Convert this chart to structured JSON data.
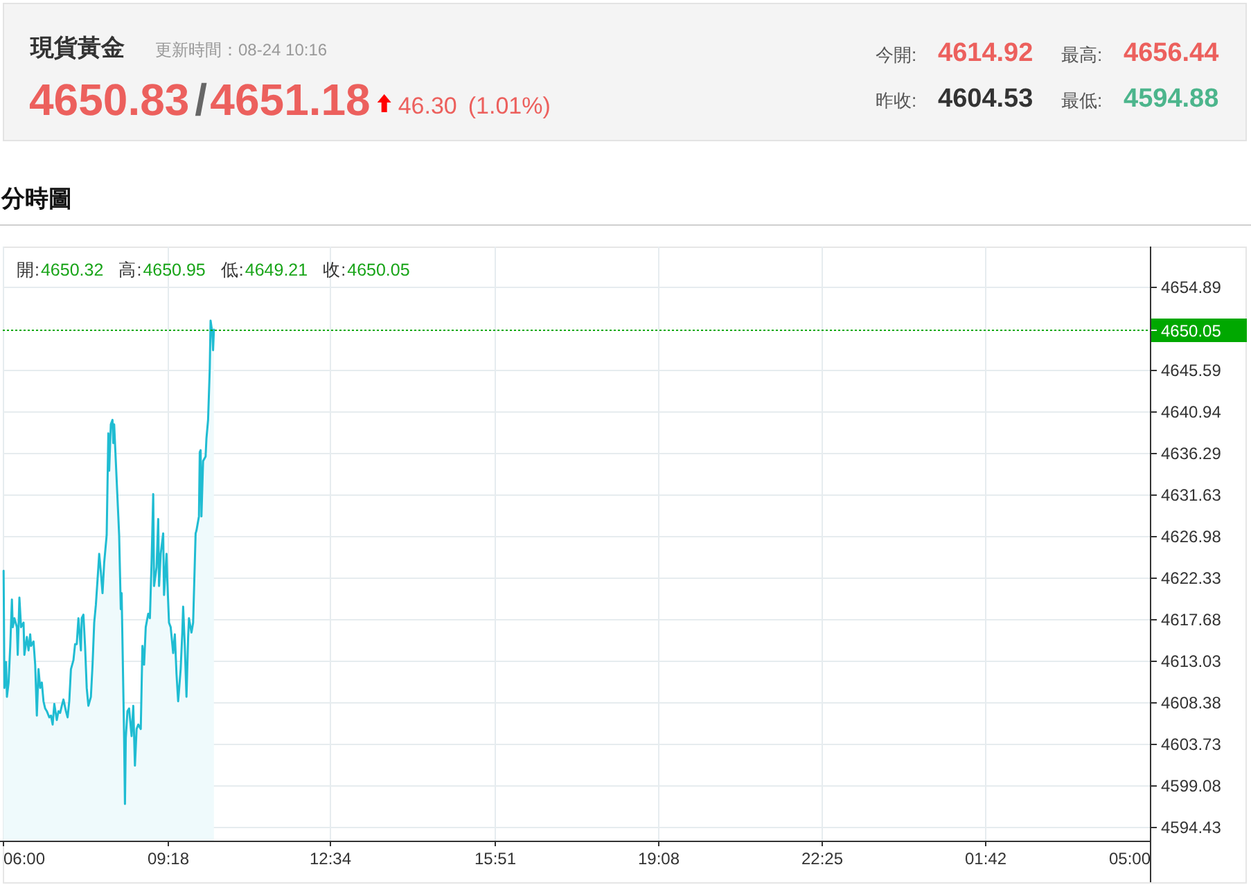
{
  "chart_data": {
    "type": "area",
    "title": "現貨黃金",
    "subtitle": "更新時間：08-24 10:16",
    "x": [
      "--08-24T06:01",
      "--08-24T06:02",
      "--08-24T06:04",
      "--08-24T06:05",
      "--08-24T06:07",
      "--08-24T06:09",
      "--08-24T06:11",
      "--08-24T06:12",
      "--08-24T06:14",
      "--08-24T06:17",
      "--08-24T06:18",
      "--08-24T06:20",
      "--08-24T06:22",
      "--08-24T06:25",
      "--08-24T06:26",
      "--08-24T06:29",
      "--08-24T06:31",
      "--08-24T06:33",
      "--08-24T06:34",
      "--08-24T06:37",
      "--08-24T06:39",
      "--08-24T06:41",
      "--08-24T06:43",
      "--08-24T06:45",
      "--08-24T06:47",
      "--08-24T06:49",
      "--08-24T06:51",
      "--08-24T06:53",
      "--08-24T06:56",
      "--08-24T06:58",
      "--08-24T07:00",
      "--08-24T07:02",
      "--08-24T07:05",
      "--08-24T07:07",
      "--08-24T07:09",
      "--08-24T07:11",
      "--08-24T07:13",
      "--08-24T07:16",
      "--08-24T07:18",
      "--08-24T07:20",
      "--08-24T07:22",
      "--08-24T07:25",
      "--08-24T07:27",
      "--08-24T07:29",
      "--08-24T07:31",
      "--08-24T07:34",
      "--08-24T07:35",
      "--08-24T07:37",
      "--08-24T07:39",
      "--08-24T07:41",
      "--08-24T07:43",
      "--08-24T07:46",
      "--08-24T07:48",
      "--08-24T07:50",
      "--08-24T07:52",
      "--08-24T07:55",
      "--08-24T07:56",
      "--08-24T07:58",
      "--08-24T08:00",
      "--08-24T08:02",
      "--08-24T08:05",
      "--08-24T08:07",
      "--08-24T08:08",
      "--08-24T08:10",
      "--08-24T08:12",
      "--08-24T08:13",
      "--08-24T08:14",
      "--08-24T08:17",
      "--08-24T08:19",
      "--08-24T08:20",
      "--08-24T08:22",
      "--08-24T08:23",
      "--08-24T08:26",
      "--08-24T08:27",
      "--08-24T08:28",
      "--08-24T08:30",
      "--08-24T08:32",
      "--08-24T08:35",
      "--08-24T08:37",
      "--08-24T08:39",
      "--08-24T08:41",
      "--08-24T08:43",
      "--08-24T08:46",
      "--08-24T08:48",
      "--08-24T08:50",
      "--08-24T08:52",
      "--08-24T08:55",
      "--08-24T08:57",
      "--08-24T08:59",
      "--08-24T09:01",
      "--08-24T09:02",
      "--08-24T09:05",
      "--08-24T09:07",
      "--08-24T09:08",
      "--08-24T09:10",
      "--08-24T09:13",
      "--08-24T09:14",
      "--08-24T09:17",
      "--08-24T09:18",
      "--08-24T09:20",
      "--08-24T09:22",
      "--08-24T09:25",
      "--08-24T09:27",
      "--08-24T09:29",
      "--08-24T09:31",
      "--08-24T09:34",
      "--08-24T09:36",
      "--08-24T09:37",
      "--08-24T09:39",
      "--08-24T09:41",
      "--08-24T09:43",
      "--08-24T09:44",
      "--08-24T09:47",
      "--08-24T09:49",
      "--08-24T09:52",
      "--08-24T09:53",
      "--08-24T09:56",
      "--08-24T09:57",
      "--08-24T09:58",
      "--08-24T09:59",
      "--08-24T10:01",
      "--08-24T10:04",
      "--08-24T10:05",
      "--08-24T10:07",
      "--08-24T10:09",
      "--08-24T10:10",
      "--08-24T10:12",
      "--08-24T10:13",
      "--08-24T10:14"
    ],
    "values": [
      4623.1,
      4610.0,
      4612.9,
      4609.0,
      4610.6,
      4614.7,
      4619.9,
      4616.8,
      4617.8,
      4616.8,
      4613.7,
      4620.1,
      4616.8,
      4617.3,
      4613.7,
      4615.7,
      4614.2,
      4616.0,
      4614.7,
      4615.2,
      4612.6,
      4606.9,
      4612.1,
      4610.0,
      4610.6,
      4608.5,
      4607.7,
      4607.4,
      4606.7,
      4606.9,
      4605.9,
      4608.2,
      4606.4,
      4607.4,
      4607.2,
      4608.0,
      4608.7,
      4607.4,
      4606.7,
      4608.5,
      4612.1,
      4613.1,
      4614.9,
      4614.9,
      4617.8,
      4614.2,
      4617.8,
      4618.2,
      4614.7,
      4610.0,
      4608.0,
      4609.0,
      4612.6,
      4617.3,
      4619.3,
      4623.5,
      4625.0,
      4623.0,
      4620.6,
      4624.0,
      4627.1,
      4638.5,
      4634.3,
      4639.5,
      4640.0,
      4637.4,
      4639.5,
      4633.3,
      4629.2,
      4627.1,
      4618.8,
      4620.6,
      4604.4,
      4597.0,
      4604.4,
      4607.4,
      4607.7,
      4604.6,
      4608.0,
      4601.3,
      4605.4,
      4605.9,
      4605.4,
      4614.7,
      4612.6,
      4616.8,
      4618.3,
      4617.8,
      4624.0,
      4631.7,
      4621.4,
      4623.5,
      4628.9,
      4621.4,
      4625.0,
      4627.3,
      4620.4,
      4625.0,
      4621.9,
      4617.3,
      4616.8,
      4613.9,
      4616.0,
      4611.6,
      4608.5,
      4612.1,
      4616.2,
      4619.1,
      4614.7,
      4609.0,
      4615.7,
      4617.8,
      4616.2,
      4617.3,
      4627.3,
      4627.6,
      4629.2,
      4636.4,
      4636.6,
      4629.2,
      4635.4,
      4635.9,
      4637.9,
      4640.0,
      4645.7,
      4651.1,
      4649.8,
      4647.8,
      4650.1
    ],
    "color": "#1fbcd2",
    "xlim": [
      "--08-24T06:00",
      "--08-25T05:00"
    ],
    "xticks": [
      {
        "value": "--08-24T06:00",
        "label": "06:00"
      },
      {
        "value": "--08-24T09:18",
        "label": "09:18"
      },
      {
        "value": "--08-24T12:34",
        "label": "12:34"
      },
      {
        "value": "--08-24T15:51",
        "label": "15:51"
      },
      {
        "value": "--08-24T19:08",
        "label": "19:08"
      },
      {
        "value": "--08-24T22:25",
        "label": "22:25"
      },
      {
        "value": "--08-25T01:42",
        "label": "01:42"
      },
      {
        "value": "--08-25T05:00",
        "label": "05:00"
      }
    ],
    "ylim": [
      4592.9,
      4659.4
    ],
    "yticks": [
      4594.43,
      4599.08,
      4603.73,
      4608.38,
      4613.03,
      4617.68,
      4622.33,
      4626.98,
      4631.63,
      4636.29,
      4640.94,
      4645.59,
      4654.89
    ],
    "grid": true,
    "ref_lines": [
      {
        "axis": "y",
        "value": 4650.05,
        "label": "4650.05",
        "color": "#00a800",
        "line_style": "dotted"
      }
    ],
    "annotations": [
      "分時圖",
      "4650.83",
      "/",
      "4651.18",
      "46.30",
      "(1.01%)",
      "今開:",
      "4614.92",
      "最高:",
      "4656.44",
      "昨收:",
      "4604.53",
      "最低:",
      "4594.88",
      "開:",
      "4650.32",
      "高:",
      "4650.95",
      "低:",
      "4649.21",
      "收:",
      "4650.05"
    ]
  }
}
